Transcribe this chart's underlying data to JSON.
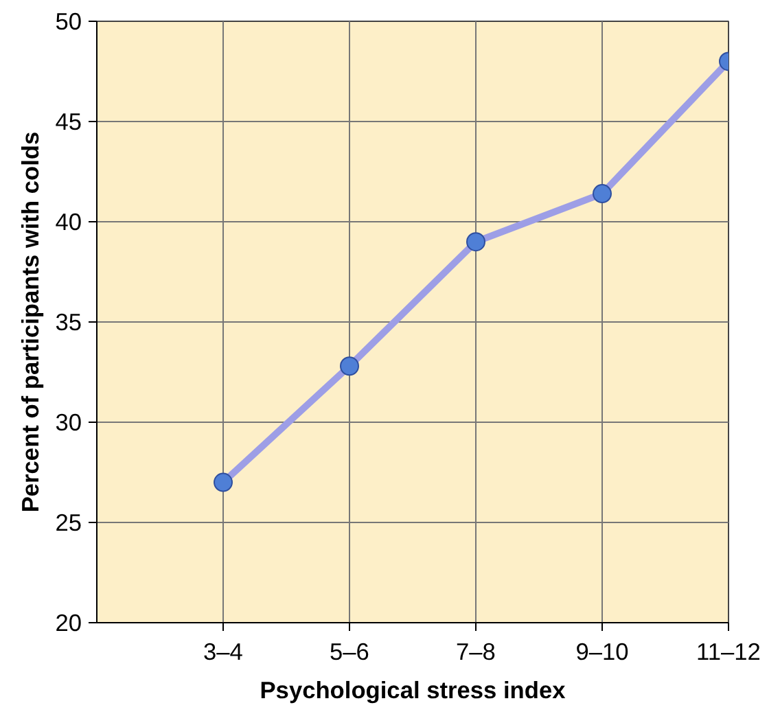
{
  "chart_data": {
    "type": "line",
    "xlabel": "Psychological stress index",
    "ylabel": "Percent of participants with colds",
    "categories": [
      "3–4",
      "5–6",
      "7–8",
      "9–10",
      "11–12"
    ],
    "series": [
      {
        "color": "#9d9ee6",
        "values": [
          27.0,
          32.8,
          39.0,
          41.4,
          48.0
        ]
      }
    ],
    "ylim": [
      20,
      50
    ],
    "yticks": [
      20,
      25,
      30,
      35,
      40,
      45,
      50
    ],
    "grid": true,
    "marker": "circle",
    "line_style": "solid"
  }
}
